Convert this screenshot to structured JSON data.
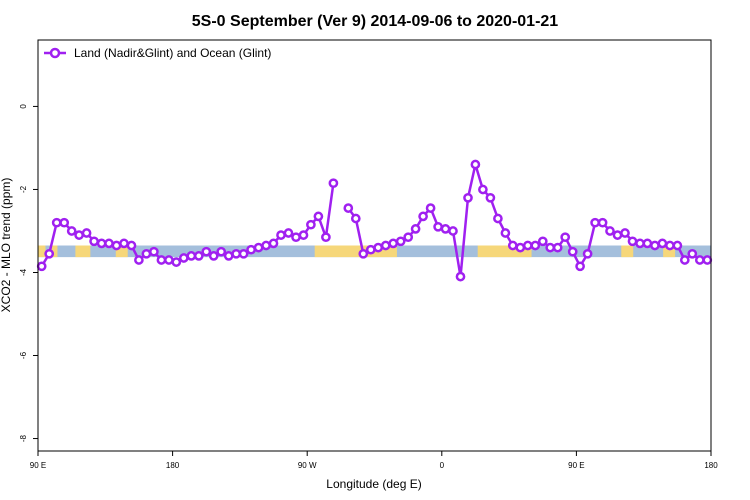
{
  "chart_data": {
    "type": "line",
    "title": "5S-0 September (Ver 9)   2014-09-06 to 2020-01-21",
    "xlabel": "Longitude (deg E)",
    "ylabel": "XCO2 - MLO trend (ppm)",
    "xlim": [
      90,
      540
    ],
    "ylim": [
      -8.3,
      1.6
    ],
    "x_ticks": [
      {
        "value": 90,
        "label": "90 E"
      },
      {
        "value": 180,
        "label": "180"
      },
      {
        "value": 270,
        "label": "90 W"
      },
      {
        "value": 360,
        "label": "0"
      },
      {
        "value": 450,
        "label": "90 E"
      },
      {
        "value": 540,
        "label": "180"
      }
    ],
    "y_ticks": [
      {
        "value": 0,
        "label": "0"
      },
      {
        "value": -2,
        "label": "-2"
      },
      {
        "value": -4,
        "label": "-4"
      },
      {
        "value": -6,
        "label": "-6"
      },
      {
        "value": -8,
        "label": "-8"
      }
    ],
    "grid": false,
    "legend_position": "top-left",
    "colors": {
      "line": "#a020f0",
      "ocean_band": "#a4bfdc",
      "land_band": "#f6d77a"
    },
    "surface_band": {
      "y_range": [
        -3.35,
        -3.63
      ],
      "land_segments": [
        [
          90,
          95
        ],
        [
          98,
          103
        ],
        [
          115,
          125
        ],
        [
          142,
          150
        ],
        [
          275,
          330
        ],
        [
          384,
          420
        ],
        [
          480,
          488
        ],
        [
          508,
          516
        ]
      ]
    },
    "series": [
      {
        "name": "Land (Nadir&Glint) and Ocean (Glint)",
        "x": [
          92.5,
          97.5,
          102.5,
          107.5,
          112.5,
          117.5,
          122.5,
          127.5,
          132.5,
          137.5,
          142.5,
          147.5,
          152.5,
          157.5,
          162.5,
          167.5,
          172.5,
          177.5,
          182.5,
          187.5,
          192.5,
          197.5,
          202.5,
          207.5,
          212.5,
          217.5,
          222.5,
          227.5,
          232.5,
          237.5,
          242.5,
          247.5,
          252.5,
          257.5,
          262.5,
          267.5,
          272.5,
          277.5,
          282.5,
          287.5,
          292.5,
          297.5,
          302.5,
          307.5,
          312.5,
          317.5,
          322.5,
          327.5,
          332.5,
          337.5,
          342.5,
          347.5,
          352.5,
          357.5,
          362.5,
          367.5,
          372.5,
          377.5,
          382.5,
          387.5,
          392.5,
          397.5,
          402.5,
          407.5,
          412.5,
          417.5,
          422.5,
          427.5,
          432.5,
          437.5,
          442.5,
          447.5,
          452.5,
          457.5,
          462.5,
          467.5,
          472.5,
          477.5,
          482.5,
          487.5,
          492.5,
          497.5,
          502.5,
          507.5,
          512.5,
          517.5,
          522.5,
          527.5,
          532.5,
          537.5
        ],
        "y": [
          -3.85,
          -3.55,
          -2.8,
          -2.8,
          -3.0,
          -3.1,
          -3.05,
          -3.25,
          -3.3,
          -3.3,
          -3.35,
          -3.3,
          -3.35,
          -3.7,
          -3.55,
          -3.5,
          -3.7,
          -3.7,
          -3.75,
          -3.65,
          -3.6,
          -3.6,
          -3.5,
          -3.6,
          -3.5,
          -3.6,
          -3.55,
          -3.55,
          -3.45,
          -3.4,
          -3.35,
          -3.3,
          -3.1,
          -3.05,
          -3.15,
          -3.1,
          -2.85,
          -2.65,
          -3.15,
          -1.85,
          null,
          -2.45,
          -2.7,
          -3.55,
          -3.45,
          -3.4,
          -3.35,
          -3.3,
          -3.25,
          -3.15,
          -2.95,
          -2.65,
          -2.45,
          -2.9,
          -2.95,
          -3.0,
          -4.1,
          -2.2,
          -1.4,
          -2.0,
          -2.2,
          -2.7,
          -3.05,
          -3.35,
          -3.4,
          -3.35,
          -3.35,
          -3.25,
          -3.4,
          -3.4,
          -3.15,
          -3.5,
          -3.85,
          -3.55,
          -2.8,
          -2.8,
          -3.0,
          -3.1,
          -3.05,
          -3.25,
          -3.3,
          -3.3,
          -3.35,
          -3.3,
          -3.35,
          -3.35,
          -3.7,
          -3.55,
          -3.7,
          -3.7
        ]
      }
    ]
  }
}
